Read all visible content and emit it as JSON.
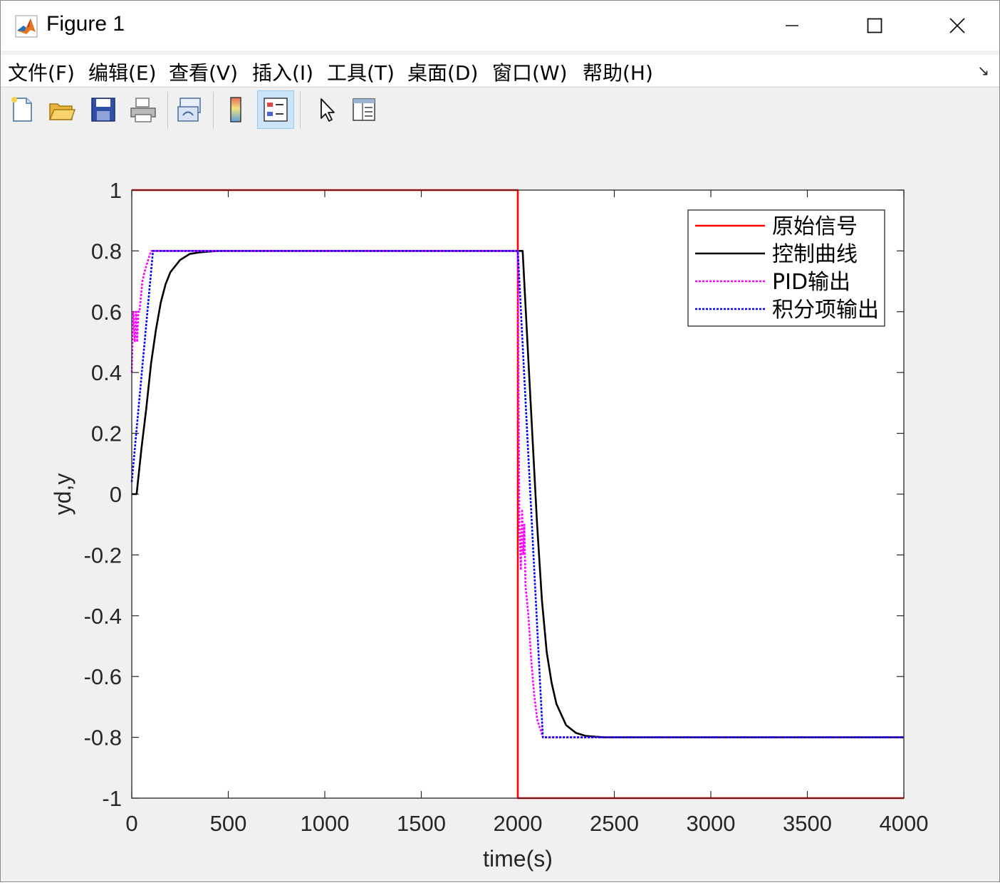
{
  "window": {
    "title": "Figure 1",
    "minimize_glyph": "—",
    "maximize_glyph": "☐",
    "close_glyph": "✕"
  },
  "menu": [
    {
      "label": "文件(F)"
    },
    {
      "label": "编辑(E)"
    },
    {
      "label": "查看(V)"
    },
    {
      "label": "插入(I)"
    },
    {
      "label": "工具(T)"
    },
    {
      "label": "桌面(D)"
    },
    {
      "label": "窗口(W)"
    },
    {
      "label": "帮助(H)"
    }
  ],
  "toolbar": {
    "buttons": [
      "new-figure-icon",
      "open-file-icon",
      "save-icon",
      "print-icon",
      "link-plot-icon",
      "colorbar-icon",
      "legend-icon",
      "edit-plot-cursor-icon",
      "property-inspector-icon"
    ],
    "active": "legend-icon"
  },
  "chart_data": {
    "type": "line",
    "title": "",
    "xlabel": "time(s)",
    "ylabel": "yd,y",
    "xlim": [
      0,
      4000
    ],
    "ylim": [
      -1,
      1
    ],
    "xticks": [
      0,
      500,
      1000,
      1500,
      2000,
      2500,
      3000,
      3500,
      4000
    ],
    "xtick_labels": [
      "0",
      "500",
      "1000",
      "1500",
      "2000",
      "2500",
      "3000",
      "3500",
      "4000"
    ],
    "yticks": [
      1,
      0.8,
      0.6,
      0.4,
      0.2,
      0,
      -0.2,
      -0.4,
      -0.6,
      -0.8,
      -1
    ],
    "ytick_labels": [
      "1",
      "0.8",
      "0.6",
      "0.4",
      "0.2",
      "0",
      "-0.2",
      "-0.4",
      "-0.6",
      "-0.8",
      "-1"
    ],
    "grid": false,
    "legend_position": "top-right",
    "series": [
      {
        "name": "原始信号",
        "color": "#ff0000",
        "style": "solid",
        "x": [
          0,
          2000,
          2000,
          4000
        ],
        "y": [
          1,
          1,
          -1,
          -1
        ]
      },
      {
        "name": "控制曲线",
        "color": "#000000",
        "style": "solid",
        "x": [
          0,
          25,
          50,
          75,
          100,
          125,
          150,
          175,
          200,
          250,
          300,
          350,
          400,
          450,
          500,
          1000,
          2000,
          2025,
          2050,
          2075,
          2100,
          2125,
          2150,
          2175,
          2200,
          2250,
          2300,
          2350,
          2400,
          2450,
          2500,
          4000
        ],
        "y": [
          0,
          0,
          0.15,
          0.28,
          0.43,
          0.54,
          0.63,
          0.69,
          0.73,
          0.77,
          0.79,
          0.795,
          0.798,
          0.8,
          0.8,
          0.8,
          0.8,
          0.8,
          0.5,
          0.2,
          -0.1,
          -0.35,
          -0.52,
          -0.62,
          -0.69,
          -0.76,
          -0.785,
          -0.795,
          -0.798,
          -0.8,
          -0.8,
          -0.8
        ]
      },
      {
        "name": "PID输出",
        "color": "#ff00ff",
        "style": "dotted",
        "x": [
          0,
          8,
          16,
          22,
          28,
          34,
          40,
          55,
          70,
          85,
          100,
          2000,
          2008,
          2016,
          2022,
          2028,
          2034,
          2040,
          2055,
          2070,
          2085,
          2100,
          2130,
          4000
        ],
        "y": [
          0.4,
          0.6,
          0.5,
          0.6,
          0.5,
          0.6,
          0.6,
          0.7,
          0.74,
          0.77,
          0.8,
          0.8,
          -0.1,
          -0.25,
          -0.05,
          -0.2,
          -0.1,
          -0.3,
          -0.4,
          -0.55,
          -0.66,
          -0.74,
          -0.8,
          -0.8
        ]
      },
      {
        "name": "积分项输出",
        "color": "#0000ff",
        "style": "dotted",
        "x": [
          0,
          110,
          2000,
          2130,
          4000
        ],
        "y": [
          0.04,
          0.8,
          0.8,
          -0.8,
          -0.8
        ]
      }
    ]
  }
}
